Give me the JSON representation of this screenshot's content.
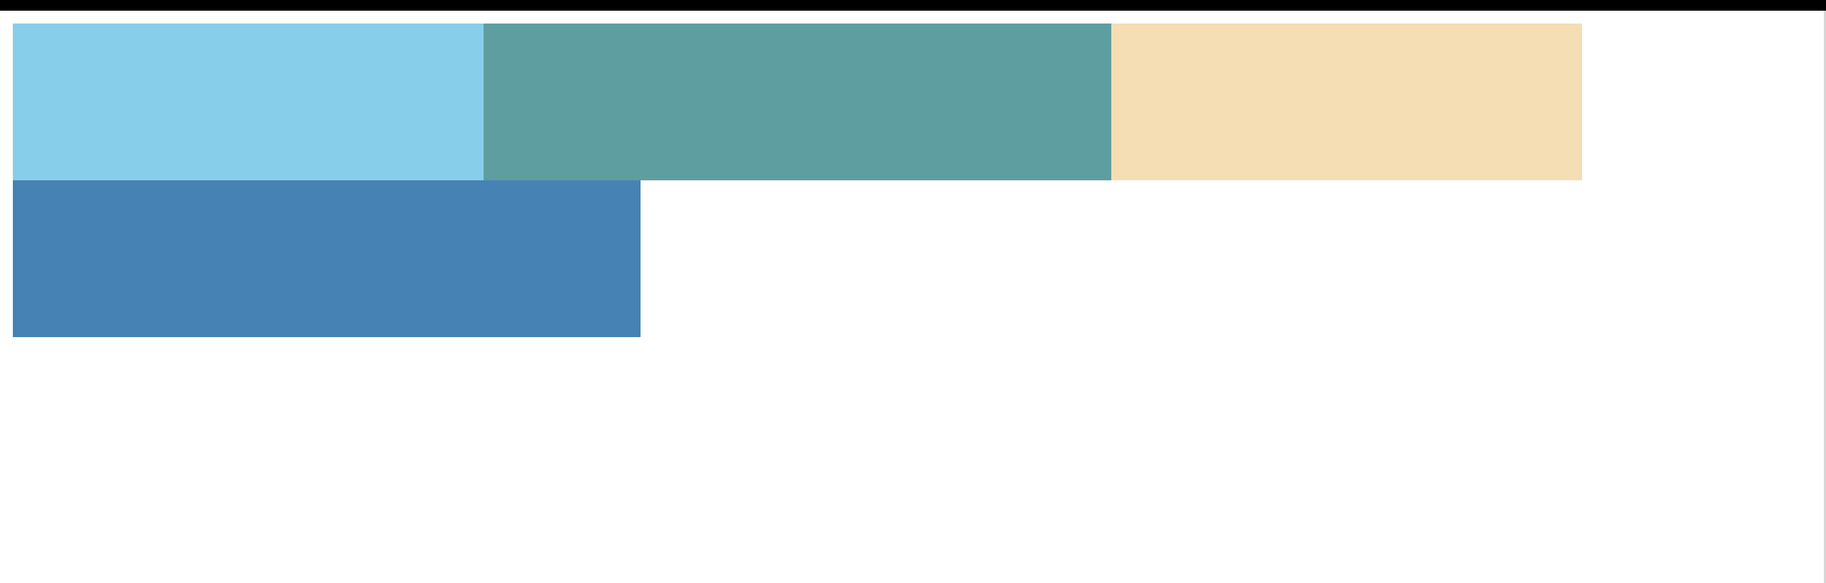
{
  "blocks": [
    {
      "name": "sky-blue-block",
      "color": "#87CEEB"
    },
    {
      "name": "teal-block",
      "color": "#5F9EA0"
    },
    {
      "name": "wheat-block",
      "color": "#F5DEB3"
    },
    {
      "name": "steel-blue-block",
      "color": "#4682B4"
    }
  ]
}
